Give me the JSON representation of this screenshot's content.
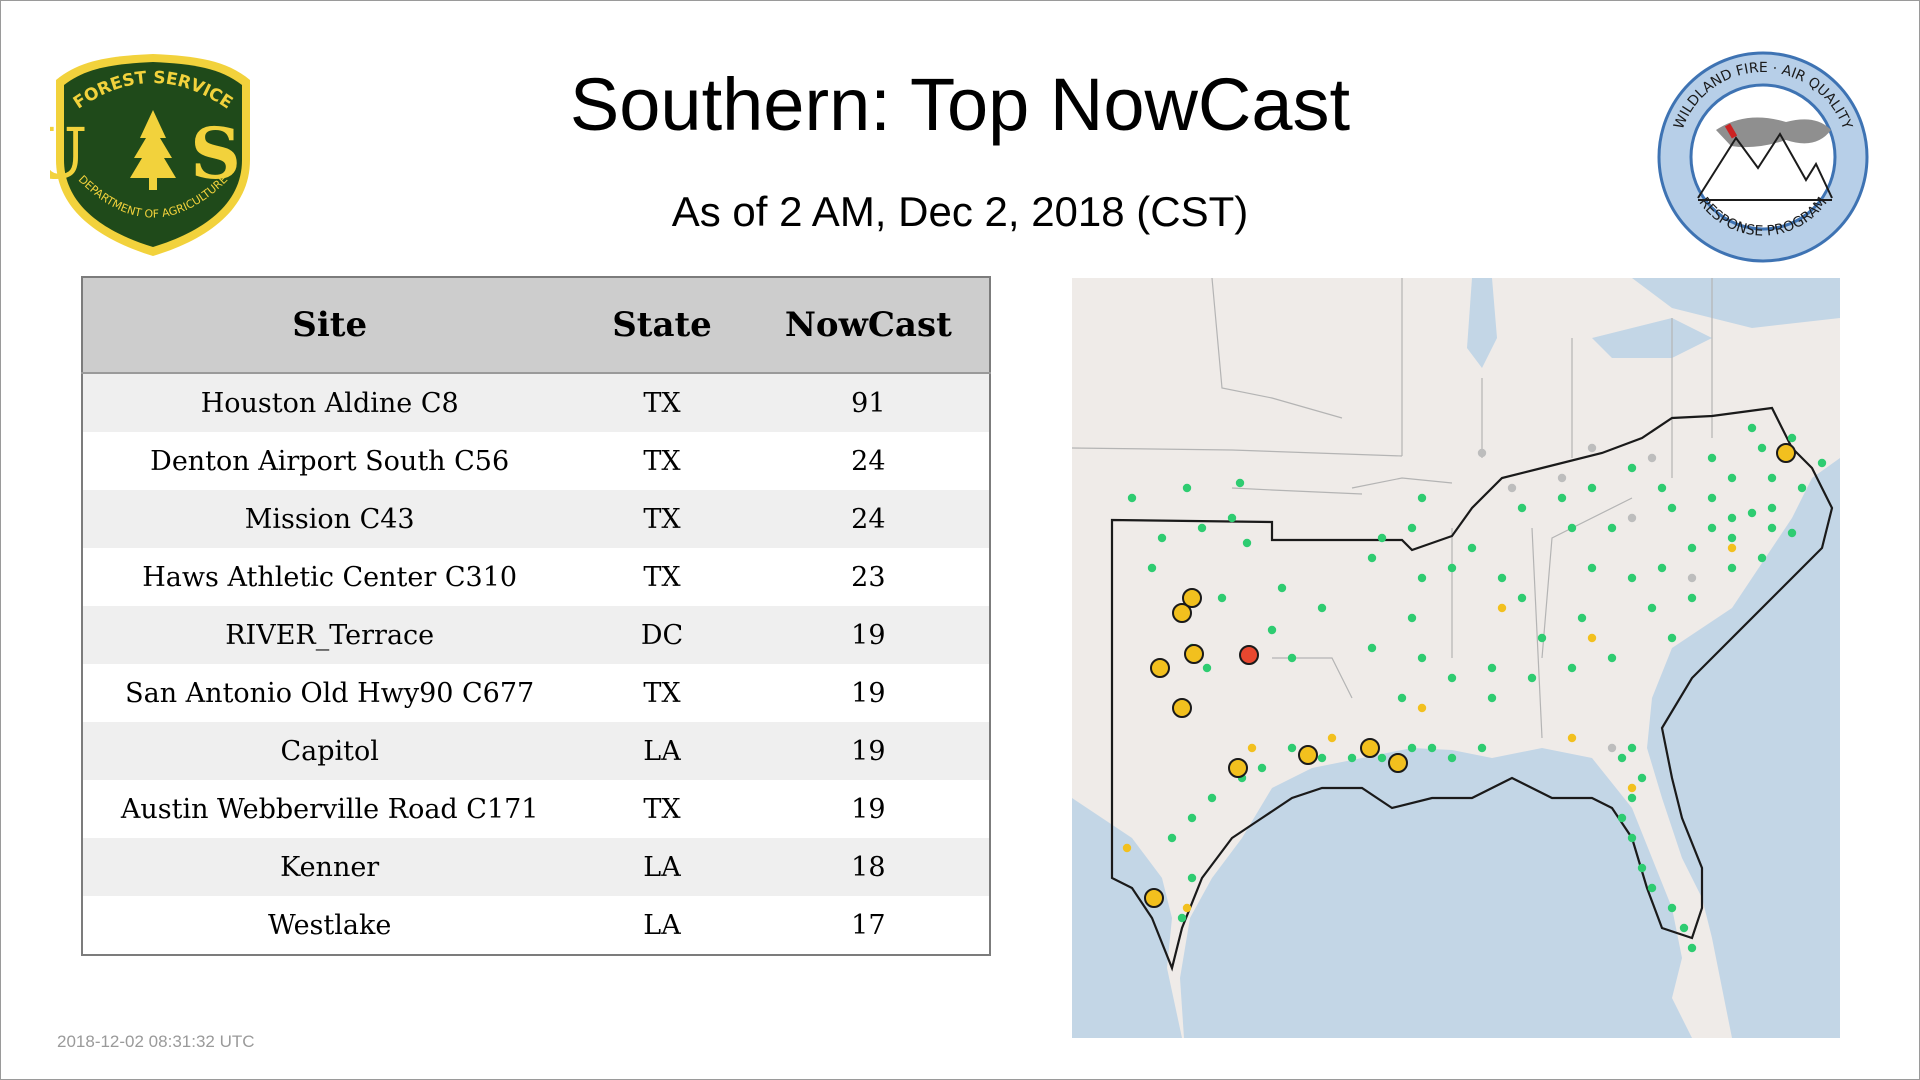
{
  "header": {
    "title": "Southern: Top NowCast",
    "subtitle": "As of  2 AM, Dec  2, 2018 (CST)"
  },
  "logos": {
    "left": {
      "icon": "forest-service-shield-icon",
      "top_text": "FOREST SERVICE",
      "letters": "U S",
      "bottom_text": "DEPARTMENT OF AGRICULTURE",
      "color": "#1f4a1a",
      "accent": "#f2d23c"
    },
    "right": {
      "icon": "wildland-fire-air-quality-seal-icon",
      "top_text": "WILDLAND FIRE · AIR QUALITY",
      "bottom_text": "RESPONSE PROGRAM",
      "color": "#3e73b3"
    }
  },
  "table": {
    "headers": [
      "Site",
      "State",
      "NowCast"
    ],
    "rows": [
      {
        "site": "Houston Aldine C8",
        "state": "TX",
        "nowcast": "91"
      },
      {
        "site": "Denton Airport South C56",
        "state": "TX",
        "nowcast": "24"
      },
      {
        "site": "Mission C43",
        "state": "TX",
        "nowcast": "24"
      },
      {
        "site": "Haws Athletic Center C310",
        "state": "TX",
        "nowcast": "23"
      },
      {
        "site": "RIVER_Terrace",
        "state": "DC",
        "nowcast": "19"
      },
      {
        "site": "San Antonio Old Hwy90 C677",
        "state": "TX",
        "nowcast": "19"
      },
      {
        "site": "Capitol",
        "state": "LA",
        "nowcast": "19"
      },
      {
        "site": "Austin Webberville Road C171",
        "state": "TX",
        "nowcast": "19"
      },
      {
        "site": "Kenner",
        "state": "LA",
        "nowcast": "18"
      },
      {
        "site": "Westlake",
        "state": "LA",
        "nowcast": "17"
      }
    ]
  },
  "map": {
    "icon": "southern-region-monitor-map",
    "colors": {
      "land": "#efebe8",
      "water": "#c3d6e6",
      "good": "#2ecc71",
      "moderate": "#f2c01e",
      "unhealthy_sensitive": "#e8472f",
      "no_data": "#bdbdbd"
    }
  },
  "footer": {
    "timestamp": "2018-12-02 08:31:32 UTC"
  }
}
